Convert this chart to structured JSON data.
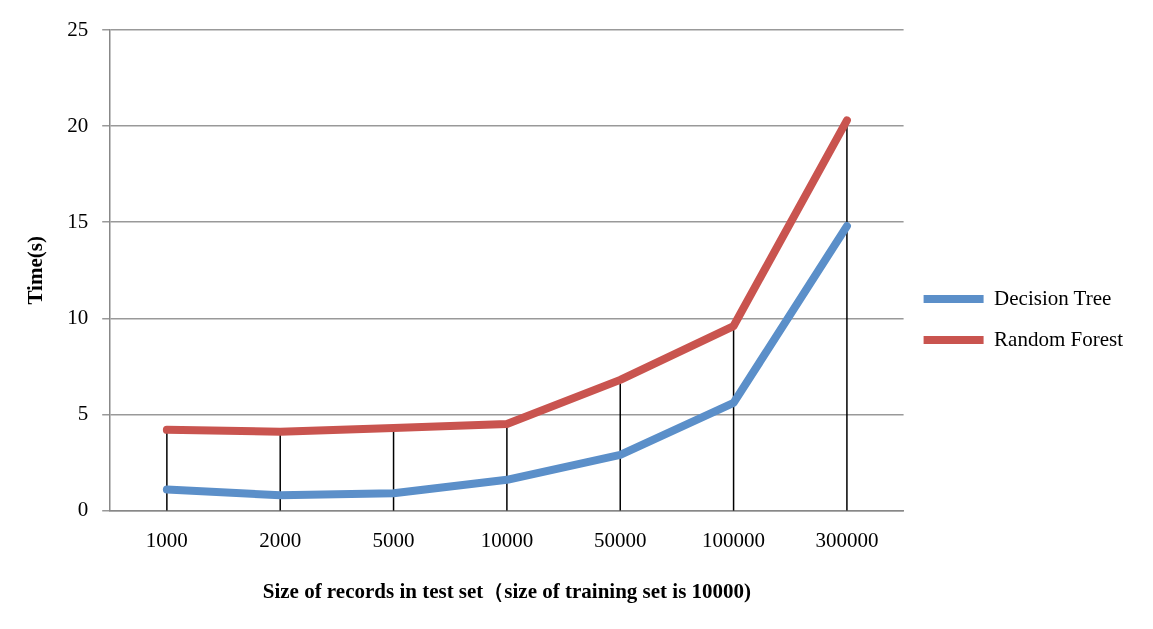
{
  "chart_data": {
    "type": "line",
    "xlabel": "Size of records in test set（size of training set is 10000)",
    "ylabel": "Time(s)",
    "categories": [
      "1000",
      "2000",
      "5000",
      "10000",
      "50000",
      "100000",
      "300000"
    ],
    "series": [
      {
        "name": "Decision Tree",
        "color": "#5b8fc9",
        "values": [
          1.1,
          0.8,
          0.9,
          1.6,
          2.9,
          5.6,
          14.8
        ]
      },
      {
        "name": "Random Forest",
        "color": "#c9544f",
        "values": [
          4.2,
          4.1,
          4.3,
          4.5,
          6.8,
          9.6,
          20.3
        ],
        "errors": [
          [
            0,
            4.2
          ],
          [
            0,
            4.1
          ],
          [
            0,
            4.3
          ],
          [
            0,
            4.5
          ],
          [
            0,
            6.8
          ],
          [
            0,
            9.6
          ],
          [
            0,
            20.3
          ]
        ]
      }
    ],
    "ylim": [
      0,
      25
    ],
    "yticks": [
      0,
      5,
      10,
      15,
      20,
      25
    ],
    "grid": "y",
    "legend": "right",
    "marker": "none",
    "line_style": "solid"
  }
}
